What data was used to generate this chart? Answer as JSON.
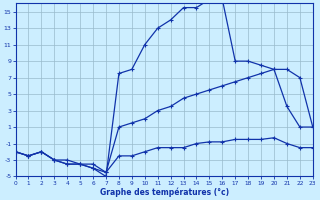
{
  "xlabel": "Graphe des températures (°c)",
  "bg_color": "#cceeff",
  "grid_color": "#99bbcc",
  "line_color": "#1133aa",
  "xmin": 0,
  "xmax": 23,
  "ymin": -5,
  "ymax": 16,
  "yticks": [
    -5,
    -3,
    -1,
    1,
    3,
    5,
    7,
    9,
    11,
    13,
    15
  ],
  "xticks": [
    0,
    1,
    2,
    3,
    4,
    5,
    6,
    7,
    8,
    9,
    10,
    11,
    12,
    13,
    14,
    15,
    16,
    17,
    18,
    19,
    20,
    21,
    22,
    23
  ],
  "curve_min_x": [
    0,
    1,
    2,
    3,
    4,
    5,
    6,
    7,
    8,
    9,
    10,
    11,
    12,
    13,
    14,
    15,
    16,
    17,
    18,
    19,
    20,
    21,
    22,
    23
  ],
  "curve_min_y": [
    -2,
    -2.5,
    -2.0,
    -3.0,
    -3.5,
    -3.5,
    -4.0,
    -4.5,
    -2.5,
    -2.5,
    -2.0,
    -1.5,
    -1.5,
    -1.5,
    -1.0,
    -0.8,
    -0.8,
    -0.5,
    -0.5,
    -0.5,
    -0.3,
    -1.0,
    -1.5,
    -1.5
  ],
  "curve_mean_x": [
    0,
    1,
    2,
    3,
    4,
    5,
    6,
    7,
    8,
    9,
    10,
    11,
    12,
    13,
    14,
    15,
    16,
    17,
    18,
    19,
    20,
    21,
    22,
    23
  ],
  "curve_mean_y": [
    -2,
    -2.5,
    -2.0,
    -3.0,
    -3.0,
    -3.5,
    -3.5,
    -4.5,
    1.0,
    1.5,
    2.0,
    3.0,
    3.5,
    4.5,
    5.0,
    5.5,
    6.0,
    6.5,
    7.0,
    7.5,
    8.0,
    8.0,
    7.0,
    1.0
  ],
  "curve_max_x": [
    0,
    1,
    2,
    3,
    4,
    5,
    6,
    7,
    8,
    9,
    10,
    11,
    12,
    13,
    14,
    15,
    16,
    17,
    18,
    19,
    20,
    21,
    22,
    23
  ],
  "curve_max_y": [
    -2,
    -2.5,
    -2.0,
    -3.0,
    -3.5,
    -3.5,
    -4.0,
    -5.0,
    7.5,
    8.0,
    11.0,
    13.0,
    14.0,
    15.5,
    15.5,
    16.5,
    16.5,
    9.0,
    9.0,
    8.5,
    8.0,
    3.5,
    1.0,
    1.0
  ]
}
